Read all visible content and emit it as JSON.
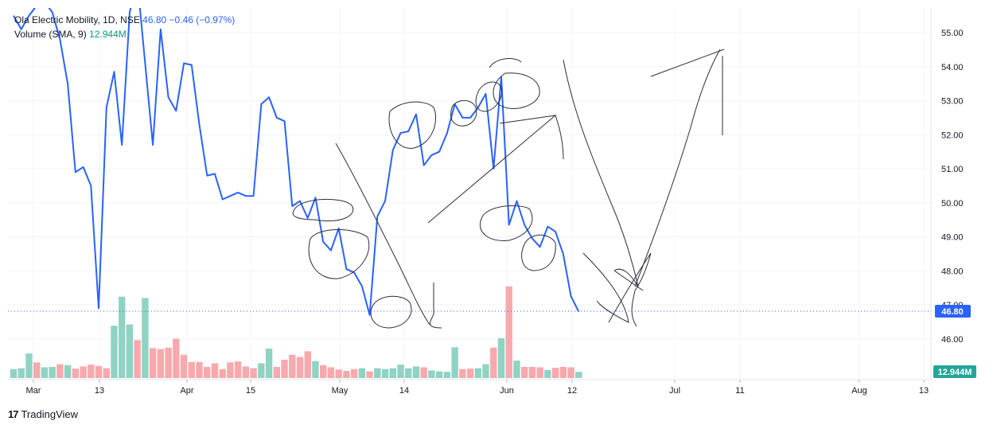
{
  "legend": {
    "symbol": "Ola Electric Mobility, 1D, NSE",
    "last": "46.80",
    "change": "−0.46 (−0.97%)",
    "volume_label": "Volume (SMA, 9)",
    "volume_value": "12.944M"
  },
  "brand": {
    "logo": "17",
    "name": "TradingView"
  },
  "colors": {
    "line": "#2962ff",
    "vol_up": "#8fd3c4",
    "vol_down": "#f7a9ad",
    "price_tag": "#2962ff",
    "volume_tag": "#26a69a",
    "grid": "#f0f3fa",
    "axis_text": "#131722"
  },
  "chart_data": {
    "type": "line",
    "y_ticks": [
      "55.00",
      "54.00",
      "53.00",
      "52.00",
      "51.00",
      "50.00",
      "49.00",
      "48.00",
      "47.00",
      "46.00"
    ],
    "ylim": [
      45.2,
      55.7
    ],
    "x_ticks": [
      "Mar",
      "13",
      "Apr",
      "15",
      "May",
      "14",
      "Jun",
      "12",
      "Jul",
      "11",
      "Aug",
      "13"
    ],
    "current_price_label": "46.80",
    "current_volume_label": "12.944M",
    "series": [
      {
        "values": [
          55.5,
          55.1,
          55.5,
          55.8,
          55.9,
          55.6,
          54.8,
          53.5,
          50.9,
          51.05,
          50.5,
          46.9,
          52.8,
          53.85,
          51.7,
          55.6,
          56.5,
          54.1,
          51.7,
          55.1,
          53.1,
          52.7,
          54.1,
          54.05,
          52.3,
          50.8,
          50.85,
          50.1,
          50.2,
          50.3,
          50.2,
          50.2,
          52.9,
          53.1,
          52.5,
          52.4,
          49.9,
          50.05,
          49.55,
          50.15,
          48.85,
          48.6,
          49.25,
          48.05,
          47.95,
          47.55,
          46.7,
          49.6,
          50.05,
          51.55,
          52.05,
          52.1,
          52.6,
          51.1,
          51.4,
          51.5,
          52.05,
          52.9,
          52.5,
          52.5,
          52.8,
          53.2,
          51.0,
          53.7,
          49.35,
          50.05,
          49.35,
          48.95,
          48.7,
          49.3,
          49.15,
          48.5,
          47.25,
          46.8
        ]
      }
    ],
    "volume": {
      "values": [
        2.0,
        2.2,
        5.5,
        3.5,
        2.4,
        2.5,
        3.1,
        2.9,
        2.1,
        2.6,
        3.0,
        2.7,
        2.2,
        11.7,
        18.2,
        12.0,
        8.5,
        17.9,
        6.7,
        6.5,
        6.8,
        8.8,
        5.2,
        3.6,
        3.6,
        2.5,
        3.3,
        2.0,
        3.5,
        3.7,
        2.6,
        2.2,
        3.3,
        6.6,
        2.5,
        4.1,
        5.2,
        4.7,
        6.0,
        3.8,
        2.9,
        2.4,
        1.9,
        1.6,
        2.0,
        2.2,
        1.5,
        2.2,
        2.0,
        2.2,
        3.0,
        2.2,
        2.6,
        2.4,
        1.7,
        1.5,
        1.4,
        6.9,
        2.0,
        2.1,
        2.2,
        3.1,
        6.8,
        8.9,
        20.5,
        3.9,
        2.5,
        2.5,
        2.4,
        1.8,
        2.3,
        2.5,
        2.4,
        1.4
      ],
      "up": [
        1,
        1,
        1,
        0,
        1,
        1,
        0,
        1,
        0,
        0,
        0,
        0,
        0,
        1,
        1,
        1,
        0,
        1,
        0,
        0,
        0,
        0,
        0,
        0,
        0,
        0,
        0,
        0,
        0,
        0,
        0,
        0,
        1,
        1,
        0,
        0,
        0,
        0,
        0,
        1,
        0,
        0,
        0,
        0,
        0,
        1,
        0,
        1,
        1,
        1,
        1,
        1,
        1,
        0,
        1,
        1,
        1,
        1,
        0,
        0,
        1,
        1,
        0,
        1,
        0,
        1,
        0,
        0,
        0,
        1,
        0,
        0,
        0,
        1
      ]
    }
  }
}
